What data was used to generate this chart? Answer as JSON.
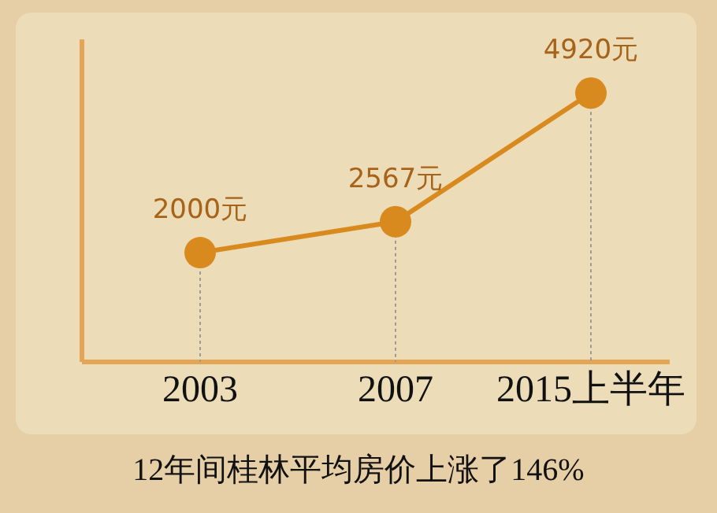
{
  "chart_data": {
    "type": "line",
    "title": "12年间桂林平均房价上涨了146%",
    "categories": [
      "2003",
      "2007",
      "2015上半年"
    ],
    "series": [
      {
        "color": "#d98a1e",
        "values": [
          2000,
          2567,
          4920
        ],
        "value_labels": [
          "2000元",
          "2567元",
          "4920元"
        ]
      }
    ],
    "marker": "circle",
    "grid": "x",
    "legend": false
  }
}
